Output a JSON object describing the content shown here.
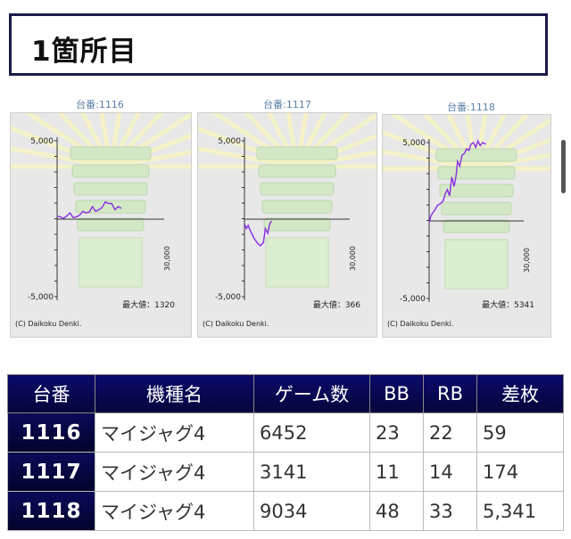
{
  "header": {
    "title": "1箇所目"
  },
  "graphs": [
    {
      "caption": "台番:1116",
      "ytop": "5,000",
      "ybottom": "-5,000",
      "xmax": "30,000",
      "max_label": "最大値：1320",
      "copyright": "(C) Daikoku Denki.",
      "series": [
        [
          0,
          0.2
        ],
        [
          0.05,
          0.15
        ],
        [
          0.1,
          0.05
        ],
        [
          0.15,
          0.2
        ],
        [
          0.2,
          0.4
        ],
        [
          0.25,
          0.1
        ],
        [
          0.3,
          0.15
        ],
        [
          0.35,
          0.25
        ],
        [
          0.4,
          0.5
        ],
        [
          0.45,
          0.4
        ],
        [
          0.5,
          0.45
        ],
        [
          0.55,
          0.8
        ],
        [
          0.6,
          0.5
        ],
        [
          0.65,
          0.6
        ],
        [
          0.7,
          0.75
        ],
        [
          0.75,
          1.1
        ],
        [
          0.8,
          1.0
        ],
        [
          0.85,
          1.0
        ],
        [
          0.9,
          0.6
        ],
        [
          0.95,
          0.8
        ],
        [
          1.0,
          0.7
        ]
      ]
    },
    {
      "caption": "台番:1117",
      "ytop": "5,000",
      "ybottom": "-5,000",
      "xmax": "30,000",
      "max_label": "最大値：366",
      "copyright": "(C) Daikoku Denki.",
      "series": [
        [
          0,
          -0.3
        ],
        [
          0.03,
          -0.6
        ],
        [
          0.06,
          -0.4
        ],
        [
          0.1,
          -0.8
        ],
        [
          0.15,
          -1.2
        ],
        [
          0.2,
          -1.5
        ],
        [
          0.25,
          -1.7
        ],
        [
          0.3,
          -1.5
        ],
        [
          0.33,
          -0.6
        ],
        [
          0.37,
          -0.9
        ],
        [
          0.4,
          -0.3
        ],
        [
          0.43,
          -0.1
        ]
      ]
    },
    {
      "caption": "台番:1118",
      "ytop": "5,000",
      "ybottom": "-5,000",
      "xmax": "30,000",
      "max_label": "最大値：5341",
      "copyright": "(C) Daikoku Denki.",
      "series": [
        [
          0,
          -0.1
        ],
        [
          0.03,
          0.3
        ],
        [
          0.06,
          0.5
        ],
        [
          0.1,
          0.7
        ],
        [
          0.15,
          1.0
        ],
        [
          0.2,
          1.1
        ],
        [
          0.25,
          1.3
        ],
        [
          0.28,
          1.7
        ],
        [
          0.32,
          2.0
        ],
        [
          0.36,
          1.6
        ],
        [
          0.4,
          2.8
        ],
        [
          0.44,
          2.2
        ],
        [
          0.48,
          3.0
        ],
        [
          0.5,
          3.8
        ],
        [
          0.54,
          3.5
        ],
        [
          0.58,
          4.2
        ],
        [
          0.62,
          4.3
        ],
        [
          0.66,
          4.6
        ],
        [
          0.7,
          4.5
        ],
        [
          0.74,
          4.9
        ],
        [
          0.78,
          5.0
        ],
        [
          0.82,
          4.7
        ],
        [
          0.86,
          5.1
        ],
        [
          0.9,
          4.8
        ],
        [
          0.94,
          5.0
        ],
        [
          1.0,
          4.9
        ]
      ]
    }
  ],
  "table": {
    "headers": [
      "台番",
      "機種名",
      "ゲーム数",
      "BB",
      "RB",
      "差枚"
    ],
    "rows": [
      [
        "1116",
        "マイジャグ4",
        "6452",
        "23",
        "22",
        "59"
      ],
      [
        "1117",
        "マイジャグ4",
        "3141",
        "11",
        "14",
        "174"
      ],
      [
        "1118",
        "マイジャグ4",
        "9034",
        "48",
        "33",
        "5,341"
      ]
    ]
  },
  "colors": {
    "line": "#8a2be2",
    "header_bg": "#07074d",
    "title_border": "#1a1a4a"
  }
}
